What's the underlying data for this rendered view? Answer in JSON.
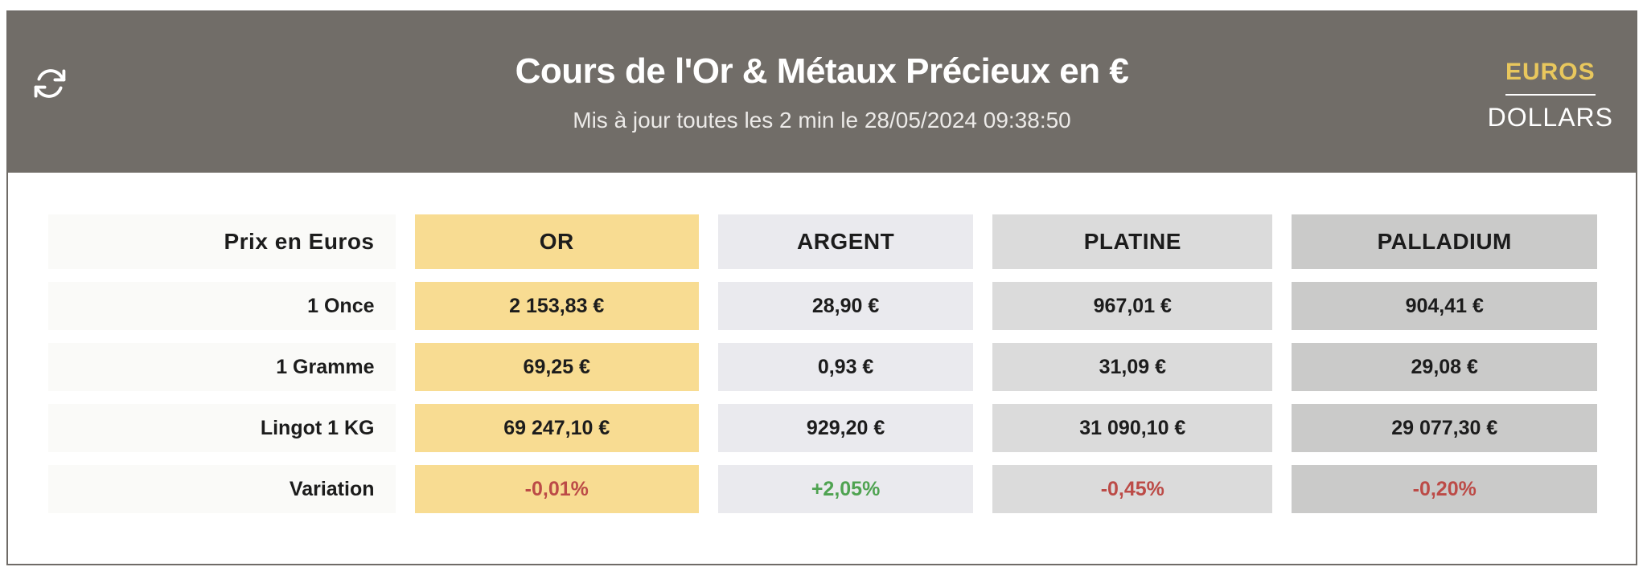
{
  "colors": {
    "header_bg": "#716D68",
    "card_border": "#6F6B67",
    "title_text": "#FFFFFF",
    "subtitle_text": "#ECEAE8",
    "euros_active": "#E8C75D",
    "dollars_text": "#FFFFFF",
    "label_cell_bg": "#FAFAF8",
    "text_dark": "#1C1C1C",
    "positive": "#4FA351",
    "negative": "#BC4B47"
  },
  "header": {
    "title": "Cours de l'Or & Métaux Précieux en €",
    "subtitle": "Mis à jour toutes les 2 min le 28/05/2024 09:38:50",
    "currency_options": [
      {
        "label": "EUROS",
        "active": true
      },
      {
        "label": "DOLLARS",
        "active": false
      }
    ]
  },
  "table": {
    "label_header": "Prix en Euros",
    "columns": [
      {
        "label": "OR",
        "bg": "#F8DC92"
      },
      {
        "label": "ARGENT",
        "bg": "#EAEAEE"
      },
      {
        "label": "PLATINE",
        "bg": "#DBDBDB"
      },
      {
        "label": "PALLADIUM",
        "bg": "#CACAC9"
      }
    ],
    "rows": [
      {
        "label": "1 Once",
        "values": [
          "2 153,83 €",
          "28,90 €",
          "967,01 €",
          "904,41 €"
        ]
      },
      {
        "label": "1 Gramme",
        "values": [
          "69,25 €",
          "0,93 €",
          "31,09 €",
          "29,08 €"
        ]
      },
      {
        "label": "Lingot 1 KG",
        "values": [
          "69 247,10 €",
          "929,20 €",
          "31 090,10 €",
          "29 077,30 €"
        ]
      },
      {
        "label": "Variation",
        "values": [
          "-0,01%",
          "+2,05%",
          "-0,45%",
          "-0,20%"
        ]
      }
    ]
  }
}
